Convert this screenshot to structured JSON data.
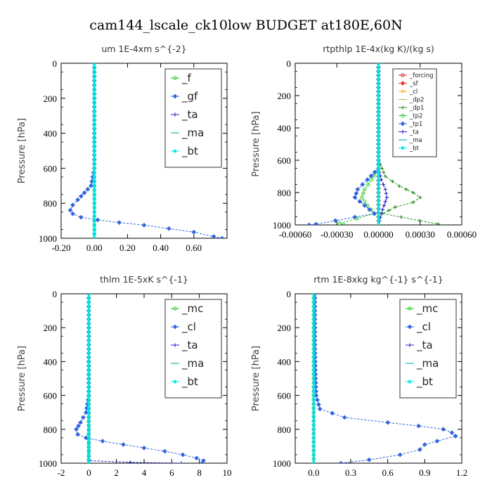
{
  "figure": {
    "title": "cam144_lscale_ck10low  BUDGET at180E,60N"
  },
  "chart_data": [
    {
      "type": "line",
      "title": "um   1E-4xm s^{-2}",
      "ylabel": "Pressure [hPa]",
      "xlabel": "",
      "xlim": [
        -0.2,
        0.8
      ],
      "ylim": [
        1000,
        0
      ],
      "y_reversed": true,
      "x_ticks": [
        -0.2,
        0.0,
        0.2,
        0.4,
        0.6
      ],
      "x_tick_labels": [
        "-0.20",
        "0.00",
        "0.20",
        "0.40",
        "0.60"
      ],
      "y_ticks": [
        0,
        200,
        400,
        600,
        800,
        1000
      ],
      "y_tick_labels": [
        "0",
        "200",
        "400",
        "600",
        "800",
        "1000"
      ],
      "legend": "top-right",
      "series": [
        {
          "name": "_f",
          "color": "#22cc22",
          "marker": "circle",
          "points": [
            [
              0.0,
              0
            ],
            [
              0.0,
              100
            ],
            [
              0.0,
              200
            ],
            [
              0.0,
              300
            ],
            [
              0.0,
              400
            ],
            [
              0.0,
              500
            ],
            [
              0.0,
              600
            ],
            [
              0.0,
              700
            ],
            [
              0.0,
              800
            ],
            [
              0.0,
              900
            ],
            [
              0.0,
              1000
            ]
          ]
        },
        {
          "name": "_gf",
          "color": "#3366dd",
          "marker": "diamond",
          "points": [
            [
              0.0,
              0
            ],
            [
              0.0,
              600
            ],
            [
              -0.02,
              700
            ],
            [
              -0.06,
              740
            ],
            [
              -0.1,
              780
            ],
            [
              -0.13,
              810
            ],
            [
              -0.145,
              840
            ],
            [
              -0.13,
              860
            ],
            [
              -0.08,
              880
            ],
            [
              0.02,
              895
            ],
            [
              0.15,
              910
            ],
            [
              0.3,
              925
            ],
            [
              0.45,
              945
            ],
            [
              0.6,
              965
            ],
            [
              0.72,
              990
            ],
            [
              0.77,
              1000
            ]
          ]
        },
        {
          "name": "_ta",
          "color": "#2222cc",
          "marker": "plus",
          "points": [
            [
              0.0,
              0
            ],
            [
              0.0,
              1000
            ]
          ]
        },
        {
          "name": "_ma",
          "color": "#00aaaa",
          "marker": "dash",
          "points": [
            [
              0.0,
              0
            ],
            [
              0.0,
              1000
            ]
          ]
        },
        {
          "name": "_bt",
          "color": "#00e5e5",
          "marker": "star",
          "points": [
            [
              0.0,
              0
            ],
            [
              0.0,
              1000
            ]
          ]
        }
      ]
    },
    {
      "type": "line",
      "title": "rtpthlp   1E-4x(kg K)/(kg s)",
      "ylabel": "Pressure [hPa]",
      "xlabel": "",
      "xlim": [
        -0.0006,
        0.0006
      ],
      "ylim": [
        1000,
        0
      ],
      "y_reversed": true,
      "x_ticks": [
        -0.0006,
        -0.0003,
        0.0,
        0.0003,
        0.0006
      ],
      "x_tick_labels": [
        "-0.00060",
        "-0.00030",
        "0.00000",
        "0.00030",
        "0.00060"
      ],
      "y_ticks": [
        0,
        200,
        400,
        600,
        800,
        1000
      ],
      "y_tick_labels": [
        "0",
        "200",
        "400",
        "600",
        "800",
        "1000"
      ],
      "legend": "top-right",
      "series": [
        {
          "name": "_forcing",
          "color": "#dd2222",
          "marker": "circle",
          "points": [
            [
              0.0,
              0
            ],
            [
              0.0,
              1000
            ]
          ]
        },
        {
          "name": "_sf",
          "color": "#ee3333",
          "marker": "diamond",
          "points": [
            [
              0.0,
              0
            ],
            [
              0.0,
              1000
            ]
          ]
        },
        {
          "name": "_cl",
          "color": "#ff9900",
          "marker": "plus",
          "points": [
            [
              0.0,
              0
            ],
            [
              0.0,
              1000
            ]
          ]
        },
        {
          "name": "_dp2",
          "color": "#bbbb33",
          "marker": "dash",
          "points": [
            [
              0.0,
              0
            ],
            [
              0.0,
              1000
            ]
          ]
        },
        {
          "name": "_dp1",
          "color": "#228822",
          "marker": "plus",
          "points": [
            [
              0.0,
              0
            ],
            [
              0.0,
              600
            ],
            [
              5e-05,
              700
            ],
            [
              0.00015,
              760
            ],
            [
              0.00025,
              800
            ],
            [
              0.0003,
              830
            ],
            [
              0.00025,
              860
            ],
            [
              0.00012,
              890
            ],
            [
              3e-05,
              930
            ],
            [
              0.00043,
              995
            ],
            [
              0.00042,
              1000
            ]
          ]
        },
        {
          "name": "_tp2",
          "color": "#33cc33",
          "marker": "circle",
          "points": [
            [
              0.0,
              0
            ],
            [
              0.0,
              650
            ],
            [
              -5e-05,
              720
            ],
            [
              -0.0001,
              780
            ],
            [
              -0.00012,
              830
            ],
            [
              -8e-05,
              880
            ],
            [
              -3e-05,
              930
            ],
            [
              -0.00028,
              990
            ],
            [
              -0.00025,
              1000
            ]
          ]
        },
        {
          "name": "_tp1",
          "color": "#3366dd",
          "marker": "diamond",
          "points": [
            [
              0.0,
              0
            ],
            [
              0.0,
              650
            ],
            [
              -8e-05,
              720
            ],
            [
              -0.00015,
              780
            ],
            [
              -0.00017,
              830
            ],
            [
              -0.0001,
              880
            ],
            [
              -3e-05,
              930
            ],
            [
              -0.00045,
              995
            ],
            [
              -0.0005,
              1000
            ]
          ]
        },
        {
          "name": "_ta",
          "color": "#2222cc",
          "marker": "plus",
          "points": [
            [
              0.0,
              0
            ],
            [
              0.0,
              650
            ],
            [
              2e-05,
              720
            ],
            [
              5e-05,
              780
            ],
            [
              6e-05,
              830
            ],
            [
              4e-05,
              880
            ],
            [
              2e-05,
              930
            ],
            [
              0.0,
              1000
            ]
          ]
        },
        {
          "name": "_ma",
          "color": "#00aaaa",
          "marker": "dash",
          "points": [
            [
              0.0,
              0
            ],
            [
              0.0,
              1000
            ]
          ]
        },
        {
          "name": "_bt",
          "color": "#00e5e5",
          "marker": "star",
          "points": [
            [
              0.0,
              0
            ],
            [
              0.0,
              1000
            ]
          ]
        }
      ]
    },
    {
      "type": "line",
      "title": "thlm   1E-5xK s^{-1}",
      "ylabel": "Pressure [hPa]",
      "xlabel": "",
      "xlim": [
        -2,
        10
      ],
      "ylim": [
        1000,
        0
      ],
      "y_reversed": true,
      "x_ticks": [
        -2,
        0,
        2,
        4,
        6,
        8,
        10
      ],
      "x_tick_labels": [
        "-2",
        "0",
        "2",
        "4",
        "6",
        "8",
        "10"
      ],
      "y_ticks": [
        0,
        200,
        400,
        600,
        800,
        1000
      ],
      "y_tick_labels": [
        "0",
        "200",
        "400",
        "600",
        "800",
        "1000"
      ],
      "legend": "top-right",
      "series": [
        {
          "name": "_mc",
          "color": "#22cc22",
          "marker": "circle",
          "points": [
            [
              0.0,
              0
            ],
            [
              0.0,
              100
            ],
            [
              0.0,
              200
            ],
            [
              0.0,
              300
            ],
            [
              0.0,
              400
            ],
            [
              0.0,
              500
            ],
            [
              0.0,
              600
            ],
            [
              0.0,
              700
            ],
            [
              0.0,
              800
            ],
            [
              0.0,
              900
            ],
            [
              0.0,
              1000
            ]
          ]
        },
        {
          "name": "_cl",
          "color": "#3366dd",
          "marker": "diamond",
          "points": [
            [
              0.0,
              0
            ],
            [
              0.0,
              600
            ],
            [
              -0.2,
              700
            ],
            [
              -0.6,
              760
            ],
            [
              -0.9,
              800
            ],
            [
              -0.8,
              830
            ],
            [
              -0.2,
              850
            ],
            [
              1.0,
              870
            ],
            [
              2.5,
              890
            ],
            [
              4.0,
              910
            ],
            [
              5.5,
              930
            ],
            [
              6.8,
              950
            ],
            [
              7.8,
              970
            ],
            [
              8.3,
              985
            ],
            [
              8.2,
              1000
            ]
          ]
        },
        {
          "name": "_ta",
          "color": "#2222cc",
          "marker": "plus",
          "points": [
            [
              0.0,
              0
            ],
            [
              0.0,
              985
            ],
            [
              3.0,
              995
            ],
            [
              6.7,
              1000
            ]
          ]
        },
        {
          "name": "_ma",
          "color": "#00aaaa",
          "marker": "dash",
          "points": [
            [
              0.0,
              0
            ],
            [
              0.0,
              1000
            ]
          ]
        },
        {
          "name": "_bt",
          "color": "#00e5e5",
          "marker": "star",
          "points": [
            [
              0.0,
              0
            ],
            [
              0.0,
              1000
            ]
          ]
        }
      ]
    },
    {
      "type": "line",
      "title": "rtm   1E-8xkg kg^{-1} s^{-1}",
      "ylabel": "Pressure [hPa]",
      "xlabel": "",
      "xlim": [
        -0.15,
        1.2
      ],
      "ylim": [
        1000,
        0
      ],
      "y_reversed": true,
      "x_ticks": [
        0.0,
        0.3,
        0.6,
        0.9,
        1.2
      ],
      "x_tick_labels": [
        "0.0",
        "0.3",
        "0.6",
        "0.9",
        "1.2"
      ],
      "y_ticks": [
        0,
        200,
        400,
        600,
        800,
        1000
      ],
      "y_tick_labels": [
        "0",
        "200",
        "400",
        "600",
        "800",
        "1000"
      ],
      "legend": "top-right",
      "series": [
        {
          "name": "_mc",
          "color": "#22cc22",
          "marker": "circle",
          "points": [
            [
              0.0,
              0
            ],
            [
              0.0,
              100
            ],
            [
              0.0,
              200
            ],
            [
              0.0,
              300
            ],
            [
              0.0,
              400
            ],
            [
              0.0,
              500
            ],
            [
              0.0,
              600
            ],
            [
              0.0,
              700
            ],
            [
              0.0,
              800
            ],
            [
              0.0,
              900
            ],
            [
              0.0,
              1000
            ]
          ]
        },
        {
          "name": "_cl",
          "color": "#3366dd",
          "marker": "diamond",
          "points": [
            [
              0.01,
              0
            ],
            [
              0.01,
              300
            ],
            [
              0.015,
              500
            ],
            [
              0.02,
              600
            ],
            [
              0.05,
              680
            ],
            [
              0.25,
              730
            ],
            [
              0.6,
              760
            ],
            [
              0.85,
              780
            ],
            [
              1.05,
              800
            ],
            [
              1.12,
              820
            ],
            [
              1.15,
              840
            ],
            [
              1.0,
              870
            ],
            [
              0.9,
              890
            ],
            [
              0.86,
              920
            ],
            [
              0.7,
              950
            ],
            [
              0.45,
              980
            ],
            [
              0.22,
              1000
            ]
          ]
        },
        {
          "name": "_ta",
          "color": "#2222cc",
          "marker": "plus",
          "points": [
            [
              0.0,
              0
            ],
            [
              0.0,
              1000
            ]
          ]
        },
        {
          "name": "_ma",
          "color": "#00aaaa",
          "marker": "dash",
          "points": [
            [
              0.0,
              0
            ],
            [
              0.0,
              1000
            ]
          ]
        },
        {
          "name": "_bt",
          "color": "#00e5e5",
          "marker": "star",
          "points": [
            [
              0.0,
              0
            ],
            [
              0.0,
              1000
            ]
          ]
        }
      ]
    }
  ]
}
